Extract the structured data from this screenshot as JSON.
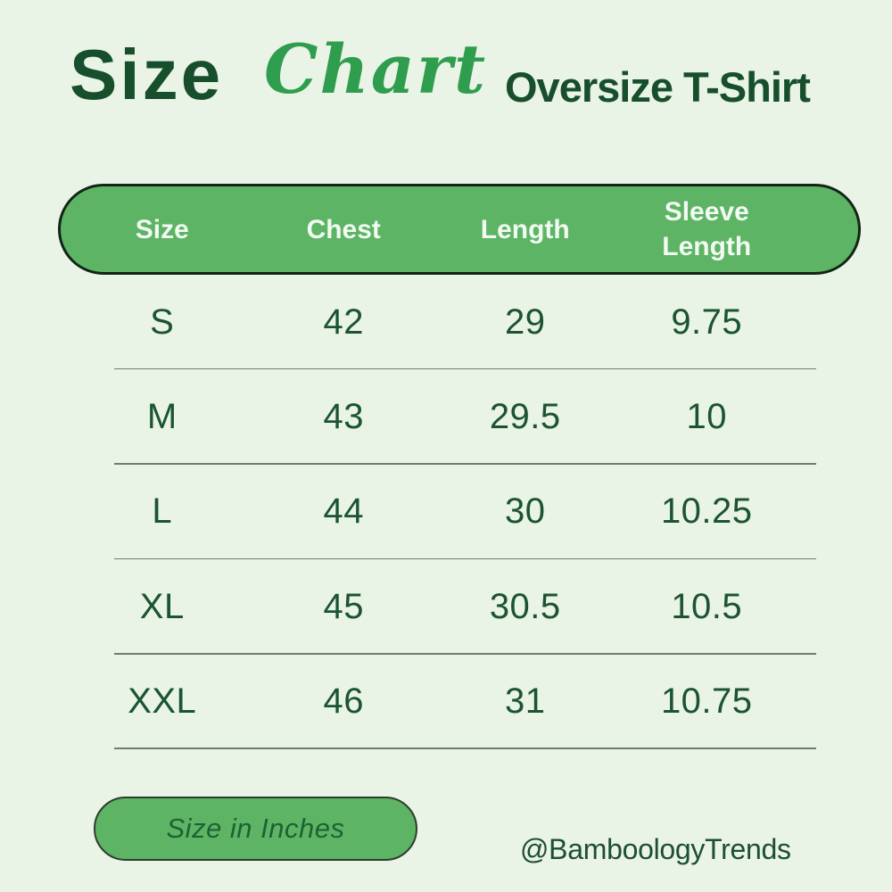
{
  "header": {
    "title_main": "Size",
    "title_script": "Chart",
    "subtitle": "Oversize T-Shirt"
  },
  "chart_data": {
    "type": "table",
    "title": "Size Chart",
    "subtitle": "Oversize T-Shirt",
    "columns": [
      "Size",
      "Chest",
      "Length",
      "Sleeve Length"
    ],
    "rows": [
      [
        "S",
        "42",
        "29",
        "9.75"
      ],
      [
        "M",
        "43",
        "29.5",
        "10"
      ],
      [
        "L",
        "44",
        "30",
        "10.25"
      ],
      [
        "XL",
        "45",
        "30.5",
        "10.5"
      ],
      [
        "XXL",
        "46",
        "31",
        "10.75"
      ]
    ],
    "unit_note": "Size in Inches"
  },
  "footer": {
    "unit_label": "Size in Inches",
    "handle": "@BamboologyTrends"
  },
  "colors": {
    "background": "#e9f3e6",
    "pill_green": "#5cb464",
    "pill_border": "#132416",
    "header_text": "#f2faf2",
    "title_dark_green": "#174f2c",
    "script_green": "#2f9d4e",
    "data_green": "#1b5430",
    "divider_gray": "#6e7f70"
  }
}
